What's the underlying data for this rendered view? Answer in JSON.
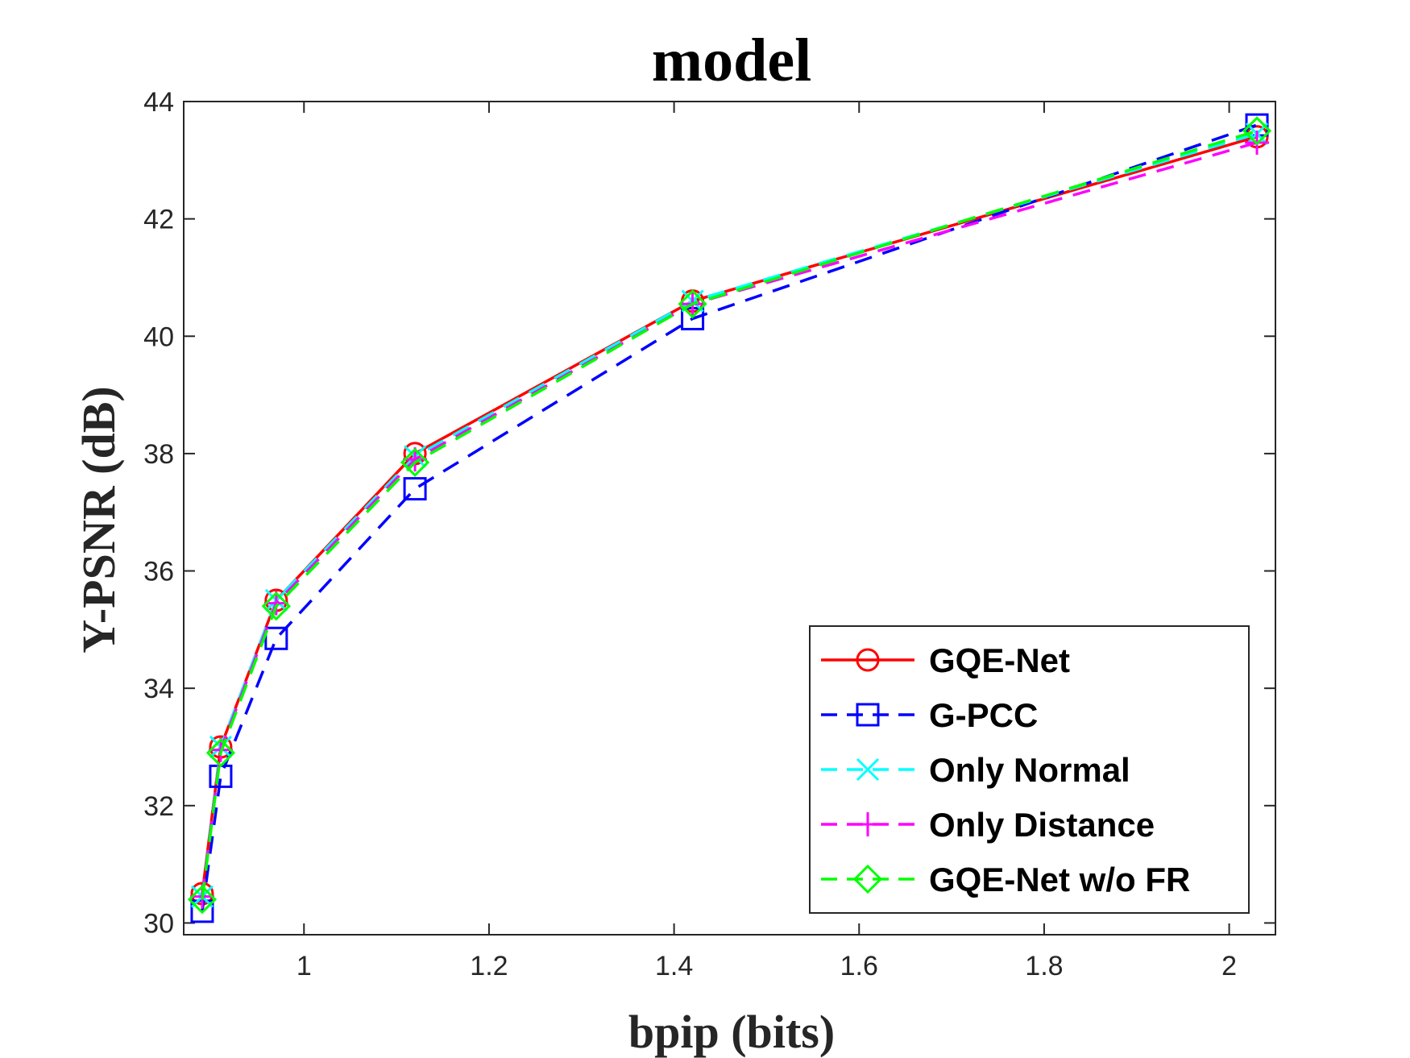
{
  "chart_data": {
    "type": "line",
    "title": "model",
    "xlabel": "bpip (bits)",
    "ylabel": "Y-PSNR (dB)",
    "xlim": [
      0.87,
      2.05
    ],
    "ylim": [
      29.8,
      44
    ],
    "xticks": [
      1,
      1.2,
      1.4,
      1.6,
      1.8,
      2
    ],
    "xtick_labels": [
      "1",
      "1.2",
      "1.4",
      "1.6",
      "1.8",
      "2"
    ],
    "yticks": [
      30,
      32,
      34,
      36,
      38,
      40,
      42,
      44
    ],
    "ytick_labels": [
      "30",
      "32",
      "34",
      "36",
      "38",
      "40",
      "42",
      "44"
    ],
    "grid": false,
    "legend_position": "bottom-right",
    "series": [
      {
        "name": "GQE-Net",
        "color": "#ff0000",
        "dash": "solid",
        "marker": "circle",
        "x": [
          0.89,
          0.91,
          0.97,
          1.12,
          1.42,
          2.03
        ],
        "y": [
          30.5,
          33.0,
          35.5,
          38.0,
          40.6,
          43.4
        ]
      },
      {
        "name": "G-PCC",
        "color": "#0000ff",
        "dash": "dashed",
        "marker": "square",
        "x": [
          0.89,
          0.91,
          0.97,
          1.12,
          1.42,
          2.03
        ],
        "y": [
          30.2,
          32.5,
          34.85,
          37.4,
          40.3,
          43.6
        ]
      },
      {
        "name": "Only Normal",
        "color": "#00ffff",
        "dash": "dashed",
        "marker": "x",
        "x": [
          0.89,
          0.91,
          0.97,
          1.12,
          1.42,
          2.03
        ],
        "y": [
          30.45,
          33.0,
          35.5,
          37.95,
          40.6,
          43.45
        ]
      },
      {
        "name": "Only Distance",
        "color": "#ff00ff",
        "dash": "dashed",
        "marker": "plus",
        "x": [
          0.89,
          0.91,
          0.97,
          1.12,
          1.42,
          2.03
        ],
        "y": [
          30.45,
          32.95,
          35.45,
          37.9,
          40.55,
          43.3
        ]
      },
      {
        "name": "GQE-Net w/o FR",
        "color": "#00ff00",
        "dash": "dashed",
        "marker": "diamond",
        "x": [
          0.89,
          0.91,
          0.97,
          1.12,
          1.42,
          2.03
        ],
        "y": [
          30.4,
          32.9,
          35.4,
          37.85,
          40.55,
          43.5
        ]
      }
    ]
  }
}
